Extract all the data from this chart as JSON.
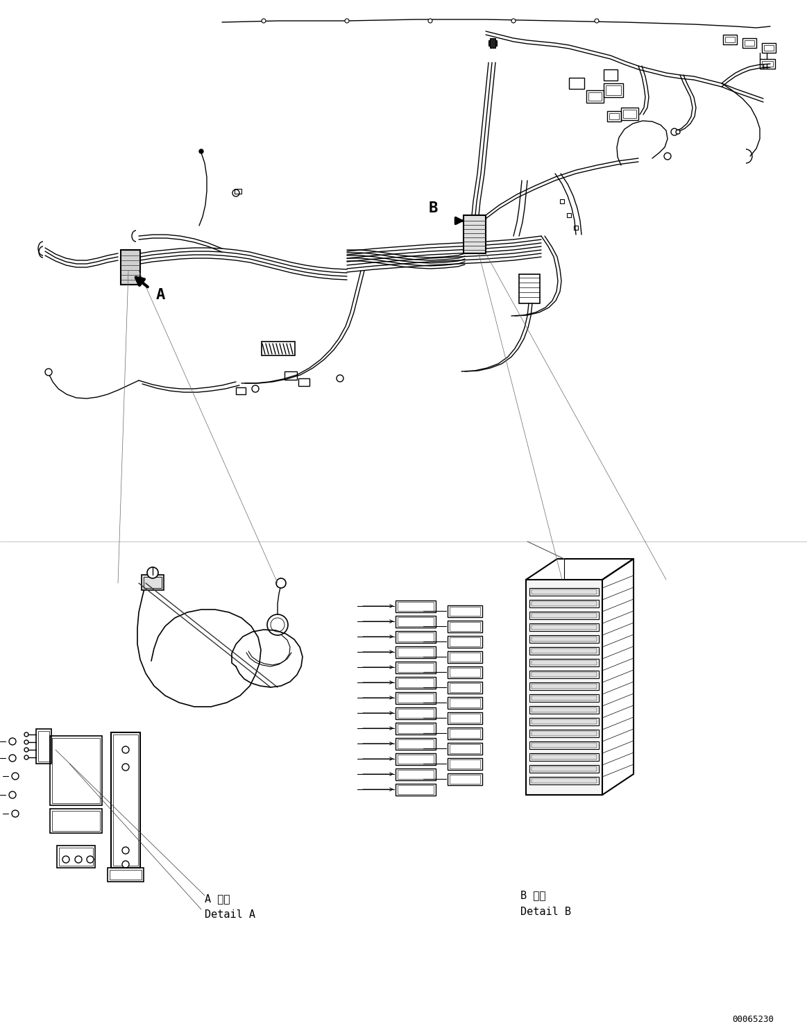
{
  "background_color": "#ffffff",
  "line_color": "#000000",
  "label_A": "A",
  "label_B": "B",
  "detail_A_japanese": "A 詳細",
  "detail_A_english": "Detail A",
  "detail_B_japanese": "B 詳細",
  "detail_B_english": "Detail B",
  "part_number": "00065230",
  "fig_width": 11.63,
  "fig_height": 14.88,
  "dpi": 100
}
